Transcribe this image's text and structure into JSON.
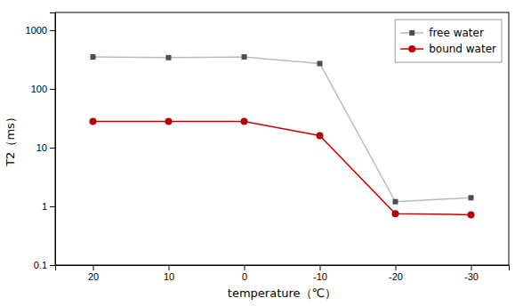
{
  "chart_data": {
    "type": "line",
    "x": [
      20,
      10,
      0,
      -10,
      -20,
      -30
    ],
    "xlabel": "temperature（℃）",
    "ylabel": "T2（ms）",
    "xlim": [
      25,
      -35
    ],
    "xticks": [
      20,
      10,
      0,
      -10,
      -20,
      -30
    ],
    "ylim": [
      0.1,
      2000
    ],
    "yticks": [
      0.1,
      1,
      10,
      100,
      1000
    ],
    "log": "y",
    "grid": false,
    "legend": "upper right",
    "series": [
      {
        "name": "free water",
        "color": "#bbbbbb",
        "marker": "square",
        "values": [
          350,
          340,
          350,
          270,
          1.2,
          1.4
        ]
      },
      {
        "name": "bound water",
        "color": "#cc0000",
        "marker": "circle",
        "values": [
          28,
          28,
          28,
          16,
          0.75,
          0.72
        ]
      }
    ]
  }
}
